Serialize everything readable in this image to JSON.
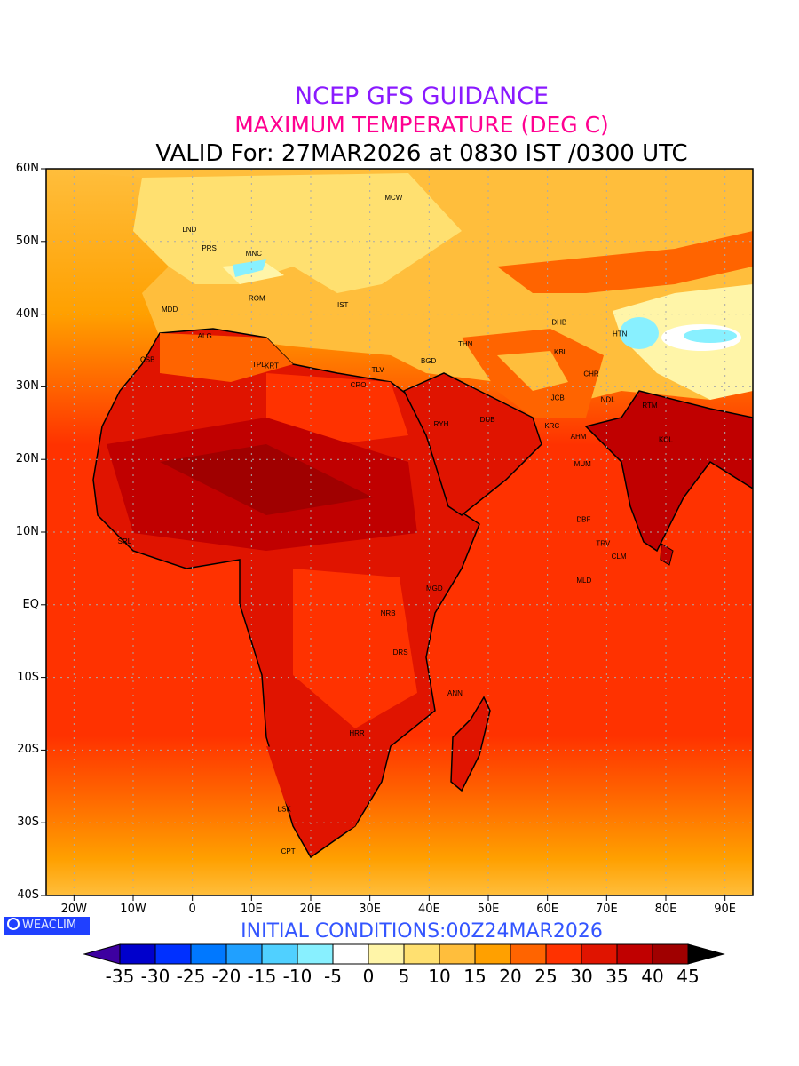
{
  "title": {
    "line1": "NCEP GFS GUIDANCE",
    "line2": "MAXIMUM TEMPERATURE (DEG C)",
    "line3": "VALID For: 27MAR2026 at 0830 IST /0300 UTC"
  },
  "axes": {
    "lat_labels": [
      "60N",
      "50N",
      "40N",
      "30N",
      "20N",
      "10N",
      "EQ",
      "10S",
      "20S",
      "30S",
      "40S"
    ],
    "lon_labels": [
      "20W",
      "10W",
      "0",
      "10E",
      "20E",
      "30E",
      "40E",
      "50E",
      "60E",
      "70E",
      "80E",
      "90E"
    ]
  },
  "logo": "WEACLIM",
  "initial_conditions": "INITIAL  CONDITIONS:00Z24MAR2026",
  "colorbar": {
    "labels": [
      "-35",
      "-30",
      "-25",
      "-20",
      "-15",
      "-10",
      "-5",
      "0",
      "5",
      "10",
      "15",
      "20",
      "25",
      "30",
      "35",
      "40",
      "45"
    ],
    "colors": [
      "#0000cc",
      "#0030ff",
      "#0078ff",
      "#20a0ff",
      "#50d0ff",
      "#88f0ff",
      "#ffffff",
      "#fff5a8",
      "#ffe070",
      "#ffbe3c",
      "#ffa000",
      "#ff6400",
      "#ff3200",
      "#e01400",
      "#c00000",
      "#a00000"
    ],
    "under_color": "#3d00a0",
    "over_color": "#000000"
  },
  "cities": [
    {
      "name": "MCW",
      "lon": 32.5,
      "lat": 56.1
    },
    {
      "name": "LND",
      "lon": -1.7,
      "lat": 51.7
    },
    {
      "name": "PRS",
      "lon": 1.6,
      "lat": 49.1
    },
    {
      "name": "MNC",
      "lon": 9,
      "lat": 48.4
    },
    {
      "name": "ROM",
      "lon": 9.5,
      "lat": 42.2
    },
    {
      "name": "MDD",
      "lon": -5.2,
      "lat": 40.7
    },
    {
      "name": "ALG",
      "lon": 0.9,
      "lat": 37
    },
    {
      "name": "IST",
      "lon": 24.5,
      "lat": 41.3
    },
    {
      "name": "CSB",
      "lon": -8.8,
      "lat": 33.8
    },
    {
      "name": "TPL",
      "lon": 10.1,
      "lat": 33.1
    },
    {
      "name": "KRT",
      "lon": 12.2,
      "lat": 32.9
    },
    {
      "name": "CRO",
      "lon": 26.7,
      "lat": 30.3
    },
    {
      "name": "TLV",
      "lon": 30.3,
      "lat": 32.4
    },
    {
      "name": "BGD",
      "lon": 38.6,
      "lat": 33.6
    },
    {
      "name": "THN",
      "lon": 44.9,
      "lat": 35.9
    },
    {
      "name": "DHB",
      "lon": 60.7,
      "lat": 38.9
    },
    {
      "name": "HTN",
      "lon": 71,
      "lat": 37.3
    },
    {
      "name": "KBL",
      "lon": 61.1,
      "lat": 34.8
    },
    {
      "name": "CHR",
      "lon": 66.1,
      "lat": 31.8
    },
    {
      "name": "NDL",
      "lon": 69,
      "lat": 28.3
    },
    {
      "name": "JCB",
      "lon": 60.6,
      "lat": 28.5
    },
    {
      "name": "RTM",
      "lon": 76,
      "lat": 27.5
    },
    {
      "name": "RYH",
      "lon": 40.8,
      "lat": 24.9
    },
    {
      "name": "DUB",
      "lon": 48.6,
      "lat": 25.5
    },
    {
      "name": "KRC",
      "lon": 59.5,
      "lat": 24.7
    },
    {
      "name": "AHM",
      "lon": 63.9,
      "lat": 23.2
    },
    {
      "name": "KOL",
      "lon": 78.8,
      "lat": 22.8
    },
    {
      "name": "MUM",
      "lon": 64.5,
      "lat": 19.4
    },
    {
      "name": "DBF",
      "lon": 64.9,
      "lat": 11.8
    },
    {
      "name": "TRV",
      "lon": 68.2,
      "lat": 8.5
    },
    {
      "name": "CLM",
      "lon": 70.8,
      "lat": 6.7
    },
    {
      "name": "MLD",
      "lon": 64.9,
      "lat": 3.4
    },
    {
      "name": "SRL",
      "lon": -12.6,
      "lat": 8.8
    },
    {
      "name": "MGD",
      "lon": 39.5,
      "lat": 2.3
    },
    {
      "name": "NRB",
      "lon": 31.8,
      "lat": -1.1
    },
    {
      "name": "DRS",
      "lon": 33.9,
      "lat": -6.5
    },
    {
      "name": "ANN",
      "lon": 43.1,
      "lat": -12.1
    },
    {
      "name": "HRR",
      "lon": 26.5,
      "lat": -17.6
    },
    {
      "name": "LSK",
      "lon": 14.4,
      "lat": -28.1
    },
    {
      "name": "CPT",
      "lon": 15,
      "lat": -33.9
    }
  ]
}
